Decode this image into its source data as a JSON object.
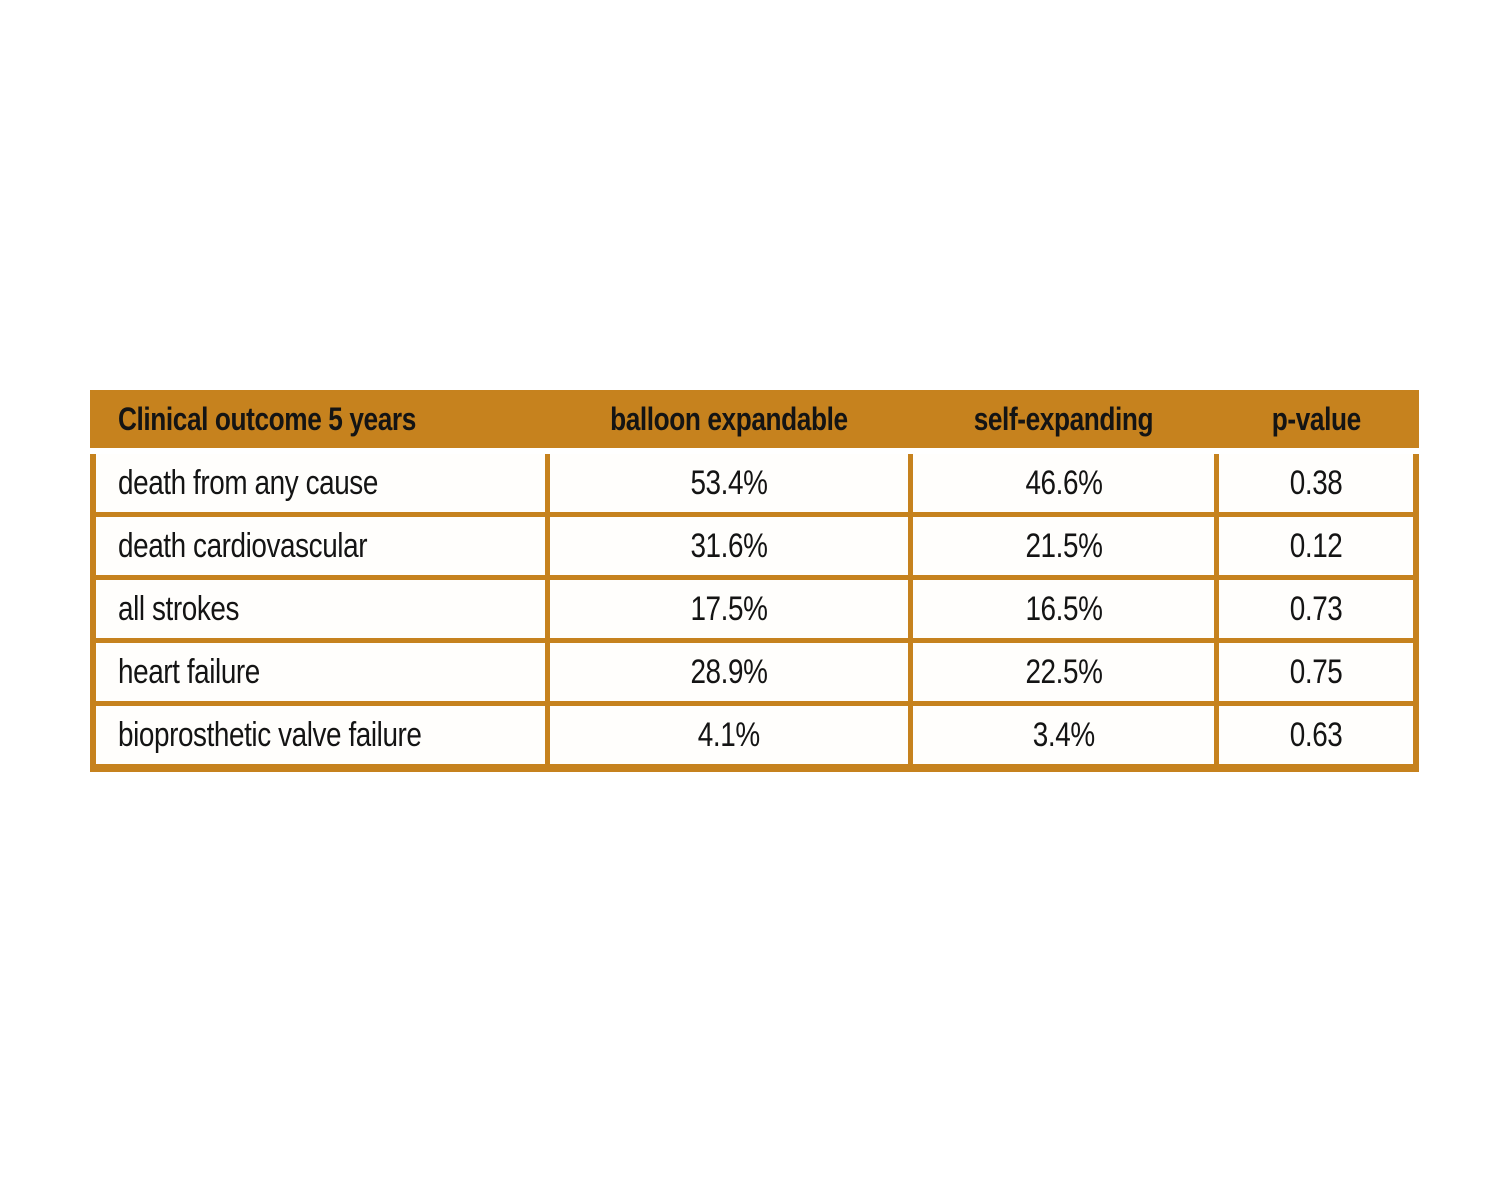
{
  "chart_data": {
    "type": "table",
    "title": "",
    "columns": [
      "Clinical outcome 5 years",
      "balloon expandable",
      "self-expanding",
      "p-value"
    ],
    "rows": [
      [
        "death from any cause",
        "53.4%",
        "46.6%",
        "0.38"
      ],
      [
        "death cardiovascular",
        "31.6%",
        "21.5%",
        "0.12"
      ],
      [
        "all strokes",
        "17.5%",
        "16.5%",
        "0.73"
      ],
      [
        "heart failure",
        "28.9%",
        "22.5%",
        "0.75"
      ],
      [
        "bioprosthetic valve failure",
        "4.1%",
        "3.4%",
        "0.63"
      ]
    ],
    "layout": {
      "header_fill": true,
      "grid_lines": true,
      "value_alignment": "center",
      "label_alignment": "left"
    }
  },
  "colors": {
    "accent": "#C6821E",
    "text": "#141414",
    "background": "#FFFFFF",
    "cell_background": "#FFFEFC"
  }
}
